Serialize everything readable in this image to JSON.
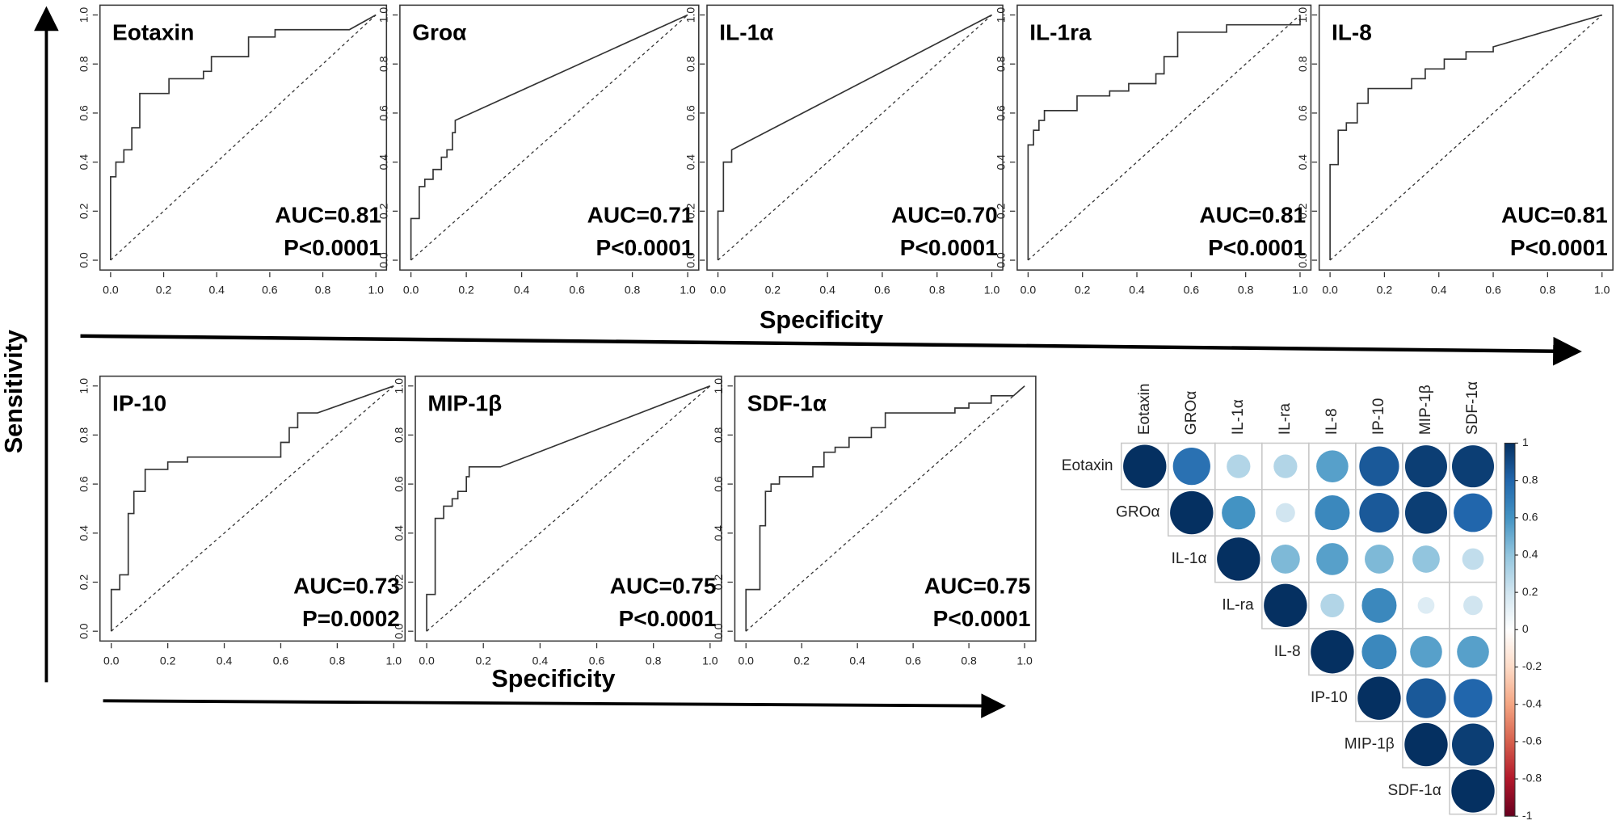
{
  "labels": {
    "y_axis": "Sensitivity",
    "x_axis_top": "Specificity",
    "x_axis_bottom": "Specificity"
  },
  "chart_data": [
    {
      "type": "line",
      "title": "Eotaxin",
      "annotations": [
        "AUC=0.81",
        "P<0.0001"
      ],
      "color": "#333333",
      "x": [
        0,
        0,
        0.02,
        0.02,
        0.05,
        0.05,
        0.08,
        0.08,
        0.11,
        0.11,
        0.22,
        0.22,
        0.35,
        0.35,
        0.38,
        0.38,
        0.52,
        0.52,
        0.62,
        0.62,
        0.9,
        1
      ],
      "values": [
        0,
        0.34,
        0.34,
        0.4,
        0.4,
        0.45,
        0.45,
        0.54,
        0.54,
        0.68,
        0.68,
        0.74,
        0.74,
        0.77,
        0.77,
        0.83,
        0.83,
        0.91,
        0.91,
        0.94,
        0.94,
        1
      ],
      "xlim": [
        -0.04,
        1.04
      ],
      "ylim": [
        -0.04,
        1.04
      ],
      "xticks": [
        {
          "value": 0,
          "label": "0.0"
        },
        0.2,
        0.4,
        0.6,
        0.8,
        {
          "value": 1,
          "label": "1.0"
        }
      ],
      "yticks": [
        {
          "value": 0,
          "label": "0.0"
        },
        0.2,
        0.4,
        0.6,
        0.8,
        {
          "value": 1,
          "label": "1.0"
        }
      ]
    },
    {
      "type": "line",
      "title": "Groα",
      "annotations": [
        "AUC=0.71",
        "P<0.0001"
      ],
      "color": "#333333",
      "x": [
        0,
        0,
        0.03,
        0.03,
        0.05,
        0.05,
        0.08,
        0.08,
        0.11,
        0.11,
        0.13,
        0.13,
        0.15,
        0.15,
        0.16,
        0.16,
        1
      ],
      "values": [
        0,
        0.17,
        0.17,
        0.3,
        0.3,
        0.33,
        0.33,
        0.37,
        0.37,
        0.42,
        0.42,
        0.45,
        0.45,
        0.52,
        0.52,
        0.57,
        1
      ],
      "xlim": [
        -0.04,
        1.04
      ],
      "ylim": [
        -0.04,
        1.04
      ],
      "xticks": [
        {
          "value": 0,
          "label": "0.0"
        },
        0.2,
        0.4,
        0.6,
        0.8,
        {
          "value": 1,
          "label": "1.0"
        }
      ],
      "yticks": [
        {
          "value": 0,
          "label": "0.0"
        },
        0.2,
        0.4,
        0.6,
        0.8,
        {
          "value": 1,
          "label": "1.0"
        }
      ]
    },
    {
      "type": "line",
      "title": "IL-1α",
      "annotations": [
        "AUC=0.70",
        "P<0.0001"
      ],
      "color": "#333333",
      "x": [
        0,
        0,
        0.02,
        0.02,
        0.05,
        0.05,
        1
      ],
      "values": [
        0,
        0.2,
        0.2,
        0.4,
        0.4,
        0.45,
        1
      ],
      "xlim": [
        -0.04,
        1.04
      ],
      "ylim": [
        -0.04,
        1.04
      ],
      "xticks": [
        {
          "value": 0,
          "label": "0.0"
        },
        0.2,
        0.4,
        0.6,
        0.8,
        {
          "value": 1,
          "label": "1.0"
        }
      ],
      "yticks": [
        {
          "value": 0,
          "label": "0.0"
        },
        0.2,
        0.4,
        0.6,
        0.8,
        {
          "value": 1,
          "label": "1.0"
        }
      ]
    },
    {
      "type": "line",
      "title": "IL-1ra",
      "annotations": [
        "AUC=0.81",
        "P<0.0001"
      ],
      "color": "#333333",
      "x": [
        0,
        0,
        0.02,
        0.02,
        0.04,
        0.04,
        0.06,
        0.06,
        0.18,
        0.18,
        0.3,
        0.3,
        0.37,
        0.37,
        0.47,
        0.47,
        0.5,
        0.5,
        0.55,
        0.55,
        0.73,
        0.73,
        1,
        1
      ],
      "values": [
        0,
        0.47,
        0.47,
        0.53,
        0.53,
        0.57,
        0.57,
        0.61,
        0.61,
        0.67,
        0.67,
        0.69,
        0.69,
        0.72,
        0.72,
        0.76,
        0.76,
        0.83,
        0.83,
        0.93,
        0.93,
        0.96,
        0.96,
        1
      ],
      "xlim": [
        -0.04,
        1.04
      ],
      "ylim": [
        -0.04,
        1.04
      ],
      "xticks": [
        {
          "value": 0,
          "label": "0.0"
        },
        0.2,
        0.4,
        0.6,
        0.8,
        {
          "value": 1,
          "label": "1.0"
        }
      ],
      "yticks": [
        {
          "value": 0,
          "label": "0.0"
        },
        0.2,
        0.4,
        0.6,
        0.8,
        {
          "value": 1,
          "label": "1.0"
        }
      ]
    },
    {
      "type": "line",
      "title": "IL-8",
      "annotations": [
        "AUC=0.81",
        "P<0.0001"
      ],
      "color": "#333333",
      "x": [
        0,
        0,
        0.03,
        0.03,
        0.06,
        0.06,
        0.1,
        0.1,
        0.14,
        0.14,
        0.3,
        0.3,
        0.35,
        0.35,
        0.42,
        0.42,
        0.5,
        0.5,
        0.6,
        0.6,
        1
      ],
      "values": [
        0,
        0.39,
        0.39,
        0.53,
        0.53,
        0.56,
        0.56,
        0.64,
        0.64,
        0.7,
        0.7,
        0.74,
        0.74,
        0.78,
        0.78,
        0.82,
        0.82,
        0.85,
        0.85,
        0.87,
        1
      ],
      "xlim": [
        -0.04,
        1.04
      ],
      "ylim": [
        -0.04,
        1.04
      ],
      "xticks": [
        {
          "value": 0,
          "label": "0.0"
        },
        0.2,
        0.4,
        0.6,
        0.8,
        {
          "value": 1,
          "label": "1.0"
        }
      ],
      "yticks": [
        {
          "value": 0,
          "label": "0.0"
        },
        0.2,
        0.4,
        0.6,
        0.8,
        {
          "value": 1,
          "label": "1.0"
        }
      ]
    },
    {
      "type": "line",
      "title": "IP-10",
      "annotations": [
        "AUC=0.73",
        "P=0.0002"
      ],
      "color": "#333333",
      "x": [
        0,
        0,
        0.03,
        0.03,
        0.06,
        0.06,
        0.08,
        0.08,
        0.12,
        0.12,
        0.2,
        0.2,
        0.27,
        0.27,
        0.6,
        0.6,
        0.63,
        0.63,
        0.66,
        0.66,
        0.73,
        1
      ],
      "values": [
        0,
        0.17,
        0.17,
        0.23,
        0.23,
        0.48,
        0.48,
        0.57,
        0.57,
        0.66,
        0.66,
        0.69,
        0.69,
        0.71,
        0.71,
        0.77,
        0.77,
        0.83,
        0.83,
        0.89,
        0.89,
        1
      ],
      "xlim": [
        -0.04,
        1.04
      ],
      "ylim": [
        -0.04,
        1.04
      ],
      "xticks": [
        {
          "value": 0,
          "label": "0.0"
        },
        0.2,
        0.4,
        0.6,
        0.8,
        {
          "value": 1,
          "label": "1.0"
        }
      ],
      "yticks": [
        {
          "value": 0,
          "label": "0.0"
        },
        0.2,
        0.4,
        0.6,
        0.8,
        {
          "value": 1,
          "label": "1.0"
        }
      ]
    },
    {
      "type": "line",
      "title": "MIP-1β",
      "annotations": [
        "AUC=0.75",
        "P<0.0001"
      ],
      "color": "#333333",
      "x": [
        0,
        0,
        0.03,
        0.03,
        0.06,
        0.06,
        0.09,
        0.09,
        0.11,
        0.11,
        0.14,
        0.14,
        0.15,
        0.15,
        0.26,
        1
      ],
      "values": [
        0,
        0.15,
        0.15,
        0.46,
        0.46,
        0.51,
        0.51,
        0.54,
        0.54,
        0.57,
        0.57,
        0.63,
        0.63,
        0.67,
        0.67,
        1
      ],
      "xlim": [
        -0.04,
        1.04
      ],
      "ylim": [
        -0.04,
        1.04
      ],
      "xticks": [
        {
          "value": 0,
          "label": "0.0"
        },
        0.2,
        0.4,
        0.6,
        0.8,
        {
          "value": 1,
          "label": "1.0"
        }
      ],
      "yticks": [
        {
          "value": 0,
          "label": "0.0"
        },
        0.2,
        0.4,
        0.6,
        0.8,
        {
          "value": 1,
          "label": "1.0"
        }
      ]
    },
    {
      "type": "line",
      "title": "SDF-1α",
      "annotations": [
        "AUC=0.75",
        "P<0.0001"
      ],
      "color": "#333333",
      "x": [
        0,
        0,
        0.05,
        0.05,
        0.07,
        0.07,
        0.09,
        0.09,
        0.12,
        0.12,
        0.24,
        0.24,
        0.28,
        0.28,
        0.32,
        0.32,
        0.37,
        0.37,
        0.45,
        0.45,
        0.5,
        0.5,
        0.75,
        0.75,
        0.8,
        0.8,
        0.88,
        0.88,
        0.96,
        1
      ],
      "values": [
        0,
        0.17,
        0.17,
        0.43,
        0.43,
        0.57,
        0.57,
        0.6,
        0.6,
        0.63,
        0.63,
        0.67,
        0.67,
        0.73,
        0.73,
        0.75,
        0.75,
        0.79,
        0.79,
        0.83,
        0.83,
        0.89,
        0.89,
        0.91,
        0.91,
        0.93,
        0.93,
        0.96,
        0.96,
        1
      ],
      "xlim": [
        -0.04,
        1.04
      ],
      "ylim": [
        -0.04,
        1.04
      ],
      "xticks": [
        {
          "value": 0,
          "label": "0.0"
        },
        0.2,
        0.4,
        0.6,
        0.8,
        {
          "value": 1,
          "label": "1.0"
        }
      ],
      "yticks": [
        {
          "value": 0,
          "label": "0.0"
        },
        0.2,
        0.4,
        0.6,
        0.8,
        {
          "value": 1,
          "label": "1.0"
        }
      ]
    },
    {
      "type": "corrplot",
      "col_labels": [
        "Eotaxin",
        "GROα",
        "IL-1α",
        "IL-ra",
        "IL-8",
        "IP-10",
        "MIP-1β",
        "SDF-1α"
      ],
      "row_labels": [
        "Eotaxin",
        "GROα",
        "IL-1α",
        "IL-ra",
        "IL-8",
        "IP-10",
        "MIP-1β",
        "SDF-1α"
      ],
      "values": [
        [
          1,
          0.75,
          0.3,
          0.3,
          0.55,
          0.85,
          0.95,
          0.95
        ],
        [
          null,
          1,
          0.6,
          0.2,
          0.65,
          0.85,
          0.95,
          0.8
        ],
        [
          null,
          null,
          1,
          0.45,
          0.55,
          0.45,
          0.4,
          0.25
        ],
        [
          null,
          null,
          null,
          1,
          0.3,
          0.65,
          0.15,
          0.2
        ],
        [
          null,
          null,
          null,
          null,
          1,
          0.65,
          0.55,
          0.55
        ],
        [
          null,
          null,
          null,
          null,
          null,
          1,
          0.85,
          0.8
        ],
        [
          null,
          null,
          null,
          null,
          null,
          null,
          1,
          0.95
        ],
        [
          null,
          null,
          null,
          null,
          null,
          null,
          null,
          1
        ]
      ],
      "colorscale": [
        "#67001f",
        "#b2182b",
        "#d6604d",
        "#f4a582",
        "#fddbc7",
        "#ffffff",
        "#d1e5f0",
        "#92c5de",
        "#4393c3",
        "#2166ac",
        "#053061"
      ],
      "clim": [
        -1,
        1
      ],
      "cticks": [
        1,
        0.8,
        0.6,
        0.4,
        0.2,
        0,
        -0.2,
        -0.4,
        -0.6,
        -0.8,
        -1
      ]
    }
  ]
}
